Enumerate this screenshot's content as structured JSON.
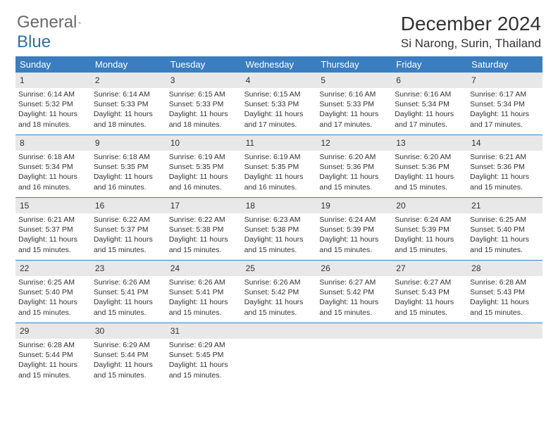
{
  "brand": {
    "name_a": "General",
    "name_b": "Blue"
  },
  "title": "December 2024",
  "location": "Si Narong, Surin, Thailand",
  "colors": {
    "header_bar": "#3b7ec0",
    "daynum_bg": "#e8e8e8",
    "rule": "#3b7ec0",
    "text": "#333333",
    "logo_gray": "#6a6a6a",
    "logo_blue": "#2f6fa8"
  },
  "typography": {
    "month_title_pt": 28,
    "location_pt": 17,
    "dow_pt": 13,
    "daynum_pt": 12,
    "body_pt": 10.5
  },
  "days_of_week": [
    "Sunday",
    "Monday",
    "Tuesday",
    "Wednesday",
    "Thursday",
    "Friday",
    "Saturday"
  ],
  "start_offset": 0,
  "days": [
    {
      "n": 1,
      "sunrise": "6:14 AM",
      "sunset": "5:32 PM",
      "daylight": "11 hours and 18 minutes."
    },
    {
      "n": 2,
      "sunrise": "6:14 AM",
      "sunset": "5:33 PM",
      "daylight": "11 hours and 18 minutes."
    },
    {
      "n": 3,
      "sunrise": "6:15 AM",
      "sunset": "5:33 PM",
      "daylight": "11 hours and 18 minutes."
    },
    {
      "n": 4,
      "sunrise": "6:15 AM",
      "sunset": "5:33 PM",
      "daylight": "11 hours and 17 minutes."
    },
    {
      "n": 5,
      "sunrise": "6:16 AM",
      "sunset": "5:33 PM",
      "daylight": "11 hours and 17 minutes."
    },
    {
      "n": 6,
      "sunrise": "6:16 AM",
      "sunset": "5:34 PM",
      "daylight": "11 hours and 17 minutes."
    },
    {
      "n": 7,
      "sunrise": "6:17 AM",
      "sunset": "5:34 PM",
      "daylight": "11 hours and 17 minutes."
    },
    {
      "n": 8,
      "sunrise": "6:18 AM",
      "sunset": "5:34 PM",
      "daylight": "11 hours and 16 minutes."
    },
    {
      "n": 9,
      "sunrise": "6:18 AM",
      "sunset": "5:35 PM",
      "daylight": "11 hours and 16 minutes."
    },
    {
      "n": 10,
      "sunrise": "6:19 AM",
      "sunset": "5:35 PM",
      "daylight": "11 hours and 16 minutes."
    },
    {
      "n": 11,
      "sunrise": "6:19 AM",
      "sunset": "5:35 PM",
      "daylight": "11 hours and 16 minutes."
    },
    {
      "n": 12,
      "sunrise": "6:20 AM",
      "sunset": "5:36 PM",
      "daylight": "11 hours and 15 minutes."
    },
    {
      "n": 13,
      "sunrise": "6:20 AM",
      "sunset": "5:36 PM",
      "daylight": "11 hours and 15 minutes."
    },
    {
      "n": 14,
      "sunrise": "6:21 AM",
      "sunset": "5:36 PM",
      "daylight": "11 hours and 15 minutes."
    },
    {
      "n": 15,
      "sunrise": "6:21 AM",
      "sunset": "5:37 PM",
      "daylight": "11 hours and 15 minutes."
    },
    {
      "n": 16,
      "sunrise": "6:22 AM",
      "sunset": "5:37 PM",
      "daylight": "11 hours and 15 minutes."
    },
    {
      "n": 17,
      "sunrise": "6:22 AM",
      "sunset": "5:38 PM",
      "daylight": "11 hours and 15 minutes."
    },
    {
      "n": 18,
      "sunrise": "6:23 AM",
      "sunset": "5:38 PM",
      "daylight": "11 hours and 15 minutes."
    },
    {
      "n": 19,
      "sunrise": "6:24 AM",
      "sunset": "5:39 PM",
      "daylight": "11 hours and 15 minutes."
    },
    {
      "n": 20,
      "sunrise": "6:24 AM",
      "sunset": "5:39 PM",
      "daylight": "11 hours and 15 minutes."
    },
    {
      "n": 21,
      "sunrise": "6:25 AM",
      "sunset": "5:40 PM",
      "daylight": "11 hours and 15 minutes."
    },
    {
      "n": 22,
      "sunrise": "6:25 AM",
      "sunset": "5:40 PM",
      "daylight": "11 hours and 15 minutes."
    },
    {
      "n": 23,
      "sunrise": "6:26 AM",
      "sunset": "5:41 PM",
      "daylight": "11 hours and 15 minutes."
    },
    {
      "n": 24,
      "sunrise": "6:26 AM",
      "sunset": "5:41 PM",
      "daylight": "11 hours and 15 minutes."
    },
    {
      "n": 25,
      "sunrise": "6:26 AM",
      "sunset": "5:42 PM",
      "daylight": "11 hours and 15 minutes."
    },
    {
      "n": 26,
      "sunrise": "6:27 AM",
      "sunset": "5:42 PM",
      "daylight": "11 hours and 15 minutes."
    },
    {
      "n": 27,
      "sunrise": "6:27 AM",
      "sunset": "5:43 PM",
      "daylight": "11 hours and 15 minutes."
    },
    {
      "n": 28,
      "sunrise": "6:28 AM",
      "sunset": "5:43 PM",
      "daylight": "11 hours and 15 minutes."
    },
    {
      "n": 29,
      "sunrise": "6:28 AM",
      "sunset": "5:44 PM",
      "daylight": "11 hours and 15 minutes."
    },
    {
      "n": 30,
      "sunrise": "6:29 AM",
      "sunset": "5:44 PM",
      "daylight": "11 hours and 15 minutes."
    },
    {
      "n": 31,
      "sunrise": "6:29 AM",
      "sunset": "5:45 PM",
      "daylight": "11 hours and 15 minutes."
    }
  ],
  "labels": {
    "sunrise": "Sunrise:",
    "sunset": "Sunset:",
    "daylight": "Daylight:"
  }
}
